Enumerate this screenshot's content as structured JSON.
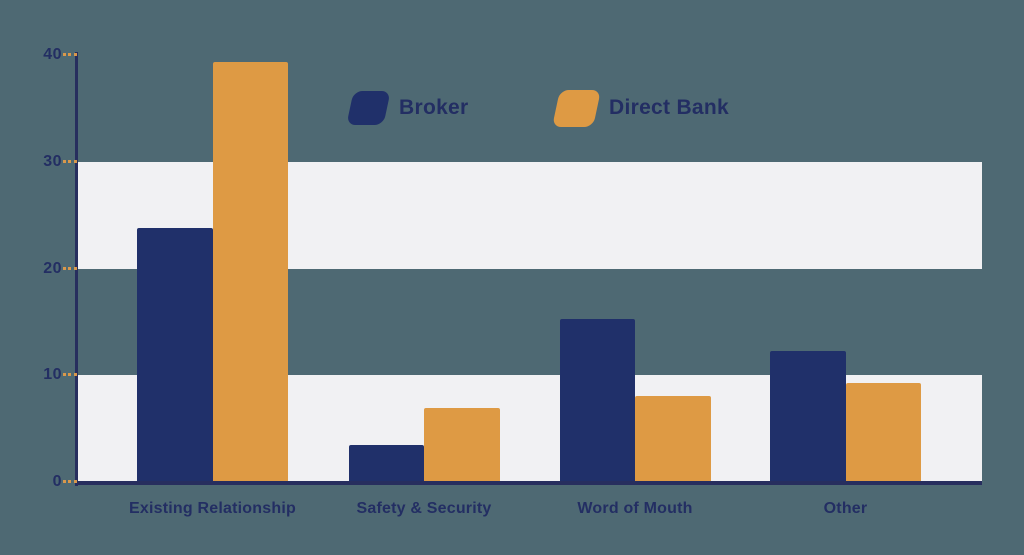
{
  "chart_data": {
    "type": "bar",
    "title": "",
    "xlabel": "",
    "ylabel": "",
    "categories": [
      "Existing Relationship",
      "Safety & Security",
      "Word of Mouth",
      "Other"
    ],
    "series": [
      {
        "name": "Broker",
        "color": "#20306a",
        "values": [
          23.8,
          3.5,
          15.3,
          12.3
        ]
      },
      {
        "name": "Direct Bank",
        "color": "#de9a44",
        "values": [
          39.3,
          6.9,
          8.1,
          9.3
        ]
      }
    ],
    "ylim": [
      0,
      40
    ],
    "yticks": [
      0,
      10,
      20,
      30,
      40
    ],
    "grid": "alternating horizontal bands on 0-10 and 20-30",
    "legend_position": "top-center"
  },
  "legend": {
    "items": [
      {
        "label": "Broker",
        "color": "#20306a"
      },
      {
        "label": "Direct Bank",
        "color": "#de9a44"
      }
    ]
  },
  "colors": {
    "background": "#4e6973",
    "band": "#f1f1f3",
    "navy": "#20306a",
    "orange": "#de9a44",
    "axis": "#272e5e",
    "text": "#232e63",
    "tick_dash": "#d9984b"
  }
}
